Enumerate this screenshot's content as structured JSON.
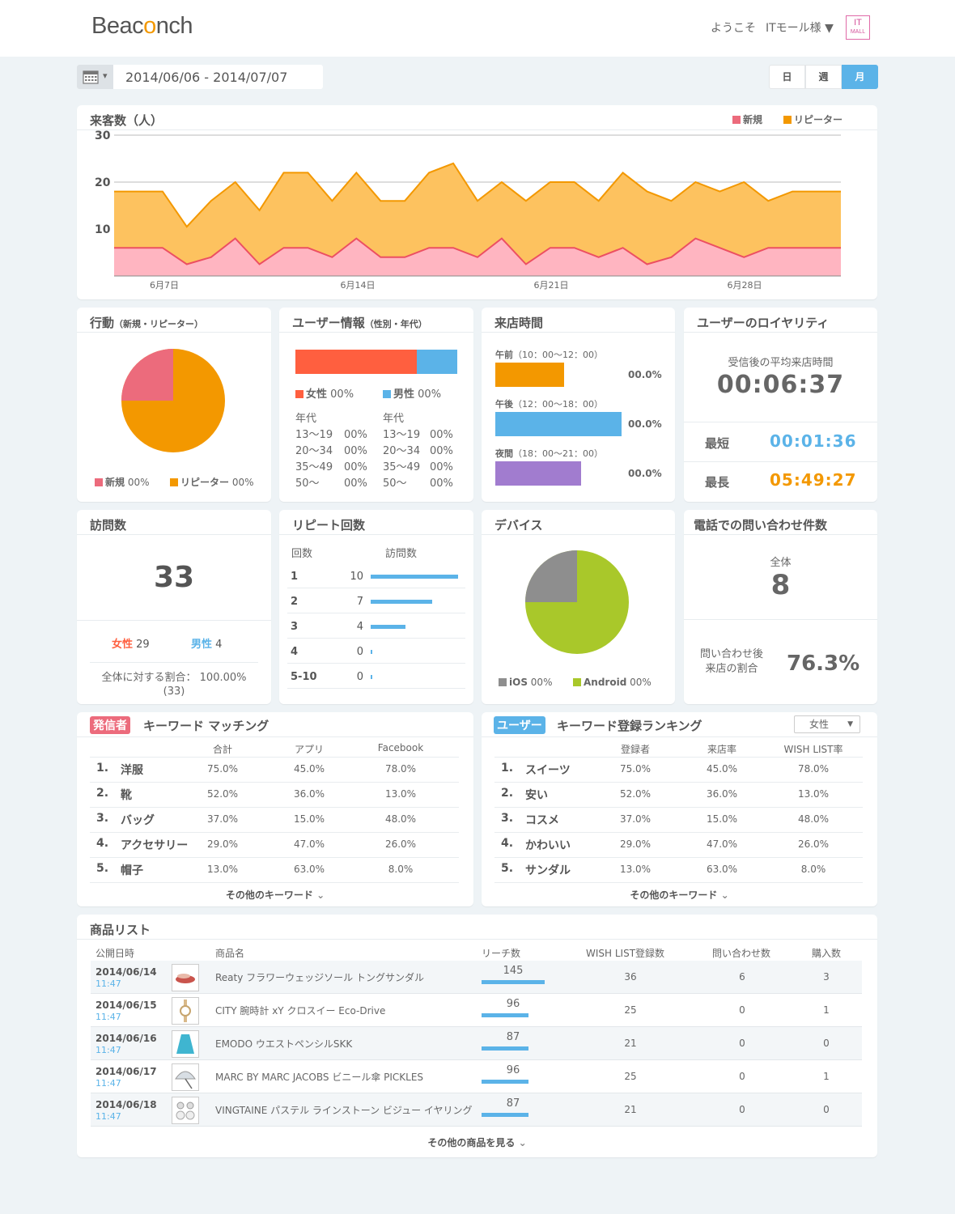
{
  "header": {
    "logo_prefix": "Beac",
    "logo_o": "o",
    "logo_suffix": "nch",
    "welcome": "ようこそ",
    "user": "ITモール様 ▼",
    "mall_icon_top": "IT",
    "mall_icon_bottom": "MALL"
  },
  "date_range": "2014/06/06 - 2014/07/07",
  "calendar_caret": "▾",
  "period_buttons": [
    "日",
    "週",
    "月"
  ],
  "visitors": {
    "title": "来客数（人）",
    "legend_new": "新規",
    "legend_repeat": "リピーター"
  },
  "chart_data": {
    "type": "area",
    "title": "来客数（人）",
    "x_labels": [
      "6月7日",
      "6月14日",
      "6月21日",
      "6月28日"
    ],
    "y_ticks": [
      10,
      20,
      30
    ],
    "ylim": [
      0,
      30
    ],
    "series": [
      {
        "name": "新規",
        "color": "#f4778d",
        "values": [
          6,
          6,
          6,
          2.5,
          4,
          8,
          2.5,
          6,
          6,
          4,
          8,
          4,
          4,
          6,
          6,
          4,
          8,
          2.5,
          6,
          6,
          4,
          6,
          2.5,
          4,
          8,
          6,
          4,
          6,
          6,
          6,
          6
        ]
      },
      {
        "name": "リピーター",
        "color": "#f39800",
        "values": [
          18,
          18,
          18,
          10.5,
          16,
          20,
          14,
          22,
          22,
          16,
          22,
          16,
          16,
          22,
          24,
          16,
          20,
          16,
          20,
          20,
          16,
          22,
          18,
          16,
          20,
          18,
          20,
          16,
          18,
          18,
          18
        ]
      }
    ]
  },
  "behavior": {
    "title": "行動",
    "subtitle": "（新規・リピーター）",
    "new_label": "新規",
    "new_pct": "00%",
    "repeat_label": "リピーター",
    "repeat_pct": "00%"
  },
  "userinfo": {
    "title": "ユーザー情報",
    "subtitle": "（性別・年代）",
    "female": "女性",
    "female_pct": "00%",
    "male": "男性",
    "male_pct": "00%",
    "age_head": "年代",
    "ages": [
      [
        "13〜19",
        "00%"
      ],
      [
        "20〜34",
        "00%"
      ],
      [
        "35〜49",
        "00%"
      ],
      [
        "50〜",
        "00%"
      ]
    ]
  },
  "visittime": {
    "title": "来店時間",
    "rows": [
      {
        "label": "午前",
        "range": "（10：00〜12：00）",
        "pct": "00.0%"
      },
      {
        "label": "午後",
        "range": "（12：00〜18：00）",
        "pct": "00.0%"
      },
      {
        "label": "夜間",
        "range": "（18：00〜21：00）",
        "pct": "00.0%"
      }
    ]
  },
  "loyalty": {
    "title": "ユーザーのロイヤリティ",
    "avg_label": "受信後の平均来店時間",
    "avg": "00:06:37",
    "min_label": "最短",
    "min": "00:01:36",
    "max_label": "最長",
    "max": "05:49:27"
  },
  "visits": {
    "title": "訪問数",
    "total": "33",
    "female": "女性",
    "female_n": "29",
    "male": "男性",
    "male_n": "4",
    "ratio_label": "全体に対する割合：",
    "ratio": "100.00%",
    "ratio_n": "(33)"
  },
  "repeat": {
    "title": "リピート回数",
    "col_count": "回数",
    "col_visits": "訪問数",
    "rows": [
      [
        "1",
        "10"
      ],
      [
        "2",
        "7"
      ],
      [
        "3",
        "4"
      ],
      [
        "4",
        "0"
      ],
      [
        "5-10",
        "0"
      ]
    ]
  },
  "device": {
    "title": "デバイス",
    "ios": "iOS",
    "ios_pct": "00%",
    "android": "Android",
    "android_pct": "00%"
  },
  "phone": {
    "title": "電話での問い合わせ件数",
    "all_label": "全体",
    "all": "8",
    "rate_label1": "問い合わせ後",
    "rate_label2": "来店の割合",
    "rate": "76.3%"
  },
  "sender_kw": {
    "badge": "発信者",
    "title": "キーワード マッチング",
    "cols": [
      "合計",
      "アプリ",
      "Facebook"
    ],
    "rows": [
      [
        "1.",
        "洋服",
        "75.0%",
        "45.0%",
        "78.0%"
      ],
      [
        "2.",
        "靴",
        "52.0%",
        "36.0%",
        "13.0%"
      ],
      [
        "3.",
        "バッグ",
        "37.0%",
        "15.0%",
        "48.0%"
      ],
      [
        "4.",
        "アクセサリー",
        "29.0%",
        "47.0%",
        "26.0%"
      ],
      [
        "5.",
        "帽子",
        "13.0%",
        "63.0%",
        "8.0%"
      ]
    ],
    "more": "その他のキーワード"
  },
  "user_kw": {
    "badge": "ユーザー",
    "title": "キーワード登録ランキング",
    "select": "女性",
    "cols": [
      "登録者",
      "来店率",
      "WISH LIST率"
    ],
    "rows": [
      [
        "1.",
        "スイーツ",
        "75.0%",
        "45.0%",
        "78.0%"
      ],
      [
        "2.",
        "安い",
        "52.0%",
        "36.0%",
        "13.0%"
      ],
      [
        "3.",
        "コスメ",
        "37.0%",
        "15.0%",
        "48.0%"
      ],
      [
        "4.",
        "かわいい",
        "29.0%",
        "47.0%",
        "26.0%"
      ],
      [
        "5.",
        "サンダル",
        "13.0%",
        "63.0%",
        "8.0%"
      ]
    ],
    "more": "その他のキーワード"
  },
  "products": {
    "title": "商品リスト",
    "cols": [
      "公開日時",
      "商品名",
      "リーチ数",
      "WISH LIST登録数",
      "問い合わせ数",
      "購入数"
    ],
    "rows": [
      {
        "date": "2014/06/14",
        "time": "11:47",
        "name": "Reaty フラワーウェッジソール トングサンダル",
        "reach": "145",
        "wish": "36",
        "inq": "6",
        "buy": "3",
        "reach_frac": 1.0
      },
      {
        "date": "2014/06/15",
        "time": "11:47",
        "name": "CITY 腕時計 xY クロスイー Eco-Drive",
        "reach": "96",
        "wish": "25",
        "inq": "0",
        "buy": "1",
        "reach_frac": 0.74
      },
      {
        "date": "2014/06/16",
        "time": "11:47",
        "name": "EMODO ウエストペンシルSKK",
        "reach": "87",
        "wish": "21",
        "inq": "0",
        "buy": "0",
        "reach_frac": 0.74
      },
      {
        "date": "2014/06/17",
        "time": "11:47",
        "name": "MARC BY MARC JACOBS ビニール傘 PICKLES",
        "reach": "96",
        "wish": "25",
        "inq": "0",
        "buy": "1",
        "reach_frac": 0.74
      },
      {
        "date": "2014/06/18",
        "time": "11:47",
        "name": "VINGTAINE パステル ラインストーン ビジュー イヤリング",
        "reach": "87",
        "wish": "21",
        "inq": "0",
        "buy": "0",
        "reach_frac": 0.74
      }
    ],
    "more": "その他の商品を見る"
  },
  "colors": {
    "new": "#ec6b7c",
    "repeat": "#f39800",
    "female": "#ff5f3f",
    "male": "#5bb3e8",
    "night": "#a17ccf",
    "android": "#a9c82a",
    "ios": "#8e8e8e",
    "accent_blue": "#5bb3e8"
  }
}
